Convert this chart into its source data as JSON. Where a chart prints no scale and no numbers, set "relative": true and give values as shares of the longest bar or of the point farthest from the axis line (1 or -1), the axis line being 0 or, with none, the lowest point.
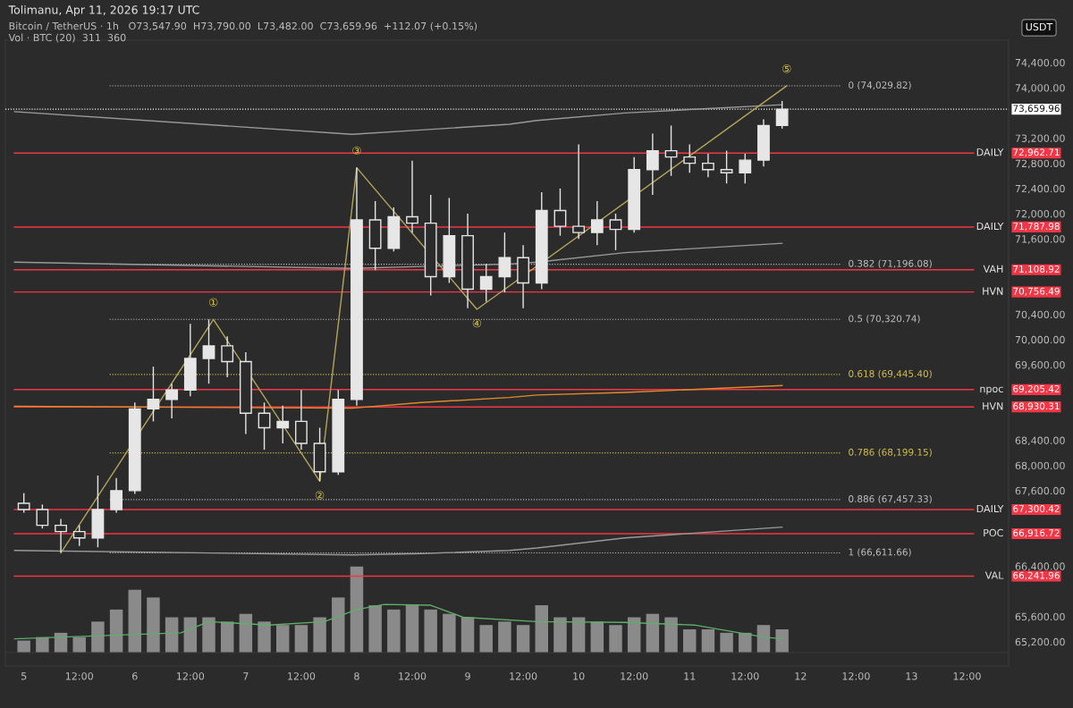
{
  "chart_data": [
    {
      "type": "candlestick",
      "title": "Tolimanu, Apr 11, 2026 19:17 UTC",
      "color": "#e6e6e6",
      "x": [
        "2026-04-05T00:00",
        "2026-04-05T04:00",
        "2026-04-05T08:00",
        "2026-04-05T12:00",
        "2026-04-05T16:00",
        "2026-04-05T20:00",
        "2026-04-06T00:00",
        "2026-04-06T04:00",
        "2026-04-06T08:00",
        "2026-04-06T12:00",
        "2026-04-06T16:00",
        "2026-04-06T20:00",
        "2026-04-07T00:00",
        "2026-04-07T04:00",
        "2026-04-07T08:00",
        "2026-04-07T12:00",
        "2026-04-07T16:00",
        "2026-04-07T20:00",
        "2026-04-08T00:00",
        "2026-04-08T04:00",
        "2026-04-08T08:00",
        "2026-04-08T12:00",
        "2026-04-08T16:00",
        "2026-04-08T20:00",
        "2026-04-09T00:00",
        "2026-04-09T04:00",
        "2026-04-09T08:00",
        "2026-04-09T12:00",
        "2026-04-09T16:00",
        "2026-04-09T20:00",
        "2026-04-10T00:00",
        "2026-04-10T04:00",
        "2026-04-10T08:00",
        "2026-04-10T12:00",
        "2026-04-10T16:00",
        "2026-04-10T20:00",
        "2026-04-11T00:00",
        "2026-04-11T04:00",
        "2026-04-11T08:00",
        "2026-04-11T12:00",
        "2026-04-11T16:00",
        "2026-04-11T20:00"
      ],
      "ohlc": [
        [
          67400,
          67560,
          67250,
          67300
        ],
        [
          67300,
          67380,
          67000,
          67050
        ],
        [
          67050,
          67150,
          66620,
          66950
        ],
        [
          66950,
          67050,
          66720,
          66850
        ],
        [
          66850,
          67840,
          66700,
          67300
        ],
        [
          67300,
          67800,
          67250,
          67600
        ],
        [
          67600,
          69000,
          67550,
          68900
        ],
        [
          68900,
          69570,
          68700,
          69050
        ],
        [
          69050,
          69300,
          68750,
          69200
        ],
        [
          69200,
          70250,
          69100,
          69700
        ],
        [
          69700,
          70320,
          69300,
          69900
        ],
        [
          69900,
          70050,
          69400,
          69650
        ],
        [
          69650,
          69800,
          68500,
          68830
        ],
        [
          68830,
          69000,
          68250,
          68600
        ],
        [
          68600,
          68950,
          68350,
          68700
        ],
        [
          68700,
          69200,
          68250,
          68350
        ],
        [
          68350,
          68600,
          67750,
          67900
        ],
        [
          67900,
          69200,
          67850,
          69050
        ],
        [
          69050,
          72730,
          68950,
          71900
        ],
        [
          71900,
          72200,
          71100,
          71450
        ],
        [
          71450,
          72100,
          71400,
          71950
        ],
        [
          71950,
          72840,
          71700,
          71850
        ],
        [
          71850,
          72300,
          70700,
          71000
        ],
        [
          71000,
          72250,
          70900,
          71650
        ],
        [
          71650,
          72000,
          70500,
          70800
        ],
        [
          70800,
          71200,
          70600,
          71000
        ],
        [
          71000,
          71700,
          70750,
          71300
        ],
        [
          71300,
          71500,
          70500,
          70900
        ],
        [
          70900,
          72340,
          70800,
          72050
        ],
        [
          72050,
          72400,
          71650,
          71800
        ],
        [
          71800,
          73100,
          71600,
          71700
        ],
        [
          71700,
          72200,
          71500,
          71900
        ],
        [
          71900,
          72000,
          71420,
          71750
        ],
        [
          71750,
          72900,
          71700,
          72700
        ],
        [
          72700,
          73270,
          72300,
          73000
        ],
        [
          73000,
          73400,
          72600,
          72900
        ],
        [
          72900,
          73100,
          72650,
          72800
        ],
        [
          72800,
          72950,
          72580,
          72700
        ],
        [
          72700,
          73000,
          72480,
          72650
        ],
        [
          72650,
          72950,
          72480,
          72850
        ],
        [
          72850,
          73500,
          72750,
          73400
        ],
        [
          73400,
          73790,
          73350,
          73659.96
        ]
      ],
      "series": [
        {
          "type": "line",
          "color": "#e08a2c",
          "x": [
            "2026-04-04T22:00",
            "2026-04-07T23:00",
            "2026-04-08T14:00",
            "2026-04-09T09:00",
            "2026-04-09T15:00",
            "2026-04-10T10:00",
            "2026-04-11T20:00"
          ],
          "values": [
            68940,
            68910,
            69000,
            69080,
            69120,
            69160,
            69270
          ]
        },
        {
          "type": "line",
          "color": "#9a9a9a",
          "x": [
            "2026-04-04T22:00",
            "2026-04-07T23:00",
            "2026-04-08T14:00",
            "2026-04-09T09:00",
            "2026-04-09T15:00",
            "2026-04-10T10:00",
            "2026-04-11T20:00"
          ],
          "values": [
            73620,
            73260,
            73330,
            73420,
            73480,
            73600,
            73730
          ]
        },
        {
          "type": "line",
          "color": "#9a9a9a",
          "x": [
            "2026-04-04T22:00",
            "2026-04-07T23:00",
            "2026-04-08T14:00",
            "2026-04-09T09:00",
            "2026-04-09T15:00",
            "2026-04-10T10:00",
            "2026-04-11T20:00"
          ],
          "values": [
            71230,
            71130,
            71160,
            71200,
            71230,
            71380,
            71530
          ]
        },
        {
          "type": "line",
          "color": "#9a9a9a",
          "x": [
            "2026-04-04T22:00",
            "2026-04-07T23:00",
            "2026-04-08T14:00",
            "2026-04-09T09:00",
            "2026-04-09T15:00",
            "2026-04-10T10:00",
            "2026-04-11T20:00"
          ],
          "values": [
            66650,
            66580,
            66600,
            66650,
            66690,
            66850,
            67020
          ]
        },
        {
          "type": "line",
          "color": "#b5a55a",
          "x": [
            "2026-04-05T08:00",
            "2026-04-06T17:00",
            "2026-04-07T16:00",
            "2026-04-08T00:00",
            "2026-04-09T02:00",
            "2026-04-11T21:00"
          ],
          "values": [
            66610,
            70320,
            67750,
            72730,
            70480,
            74030
          ]
        }
      ],
      "ref_lines": [
        {
          "axis": "y",
          "value": 74029.82,
          "label": "0 (74,029.82)",
          "color": "#bfbfbf",
          "line_style": "dotted"
        },
        {
          "axis": "y",
          "value": 73659.96,
          "label": null,
          "color": "#ffffff",
          "line_style": "dotted"
        },
        {
          "axis": "y",
          "value": 72962.71,
          "label": "DAILY",
          "color": "#f23645",
          "line_style": "solid"
        },
        {
          "axis": "y",
          "value": 71787.98,
          "label": "DAILY",
          "color": "#f23645",
          "line_style": "solid"
        },
        {
          "axis": "y",
          "value": 71196.08,
          "label": "0.382 (71,196.08)",
          "color": "#bfbfbf",
          "line_style": "dotted"
        },
        {
          "axis": "y",
          "value": 71108.92,
          "label": "VAH",
          "color": "#f23645",
          "line_style": "solid"
        },
        {
          "axis": "y",
          "value": 70756.49,
          "label": "HVN",
          "color": "#f23645",
          "line_style": "solid"
        },
        {
          "axis": "y",
          "value": 70320.74,
          "label": "0.5 (70,320.74)",
          "color": "#bfbfbf",
          "line_style": "dotted"
        },
        {
          "axis": "y",
          "value": 69445.4,
          "label": "0.618 (69,445.40)",
          "color": "#d4bf4a",
          "line_style": "dotted"
        },
        {
          "axis": "y",
          "value": 69205.42,
          "label": "npoc",
          "color": "#f23645",
          "line_style": "solid"
        },
        {
          "axis": "y",
          "value": 68930.31,
          "label": "HVN",
          "color": "#f23645",
          "line_style": "solid"
        },
        {
          "axis": "y",
          "value": 68199.15,
          "label": "0.786 (68,199.15)",
          "color": "#d4bf4a",
          "line_style": "dotted"
        },
        {
          "axis": "y",
          "value": 67457.33,
          "label": "0.886 (67,457.33)",
          "color": "#bfbfbf",
          "line_style": "dotted"
        },
        {
          "axis": "y",
          "value": 67300.42,
          "label": "DAILY",
          "color": "#f23645",
          "line_style": "solid"
        },
        {
          "axis": "y",
          "value": 66916.72,
          "label": "POC",
          "color": "#f23645",
          "line_style": "solid"
        },
        {
          "axis": "y",
          "value": 66611.66,
          "label": "1 (66,611.66)",
          "color": "#bfbfbf",
          "line_style": "dotted"
        },
        {
          "axis": "y",
          "value": 66241.96,
          "label": "VAL",
          "color": "#f23645",
          "line_style": "solid"
        }
      ],
      "annotations": [
        "Bitcoin / TetherUS · 1h   O73,547.90  H73,790.00  L73,482.00  C73,659.96  +112.07 (+0.15%)",
        "Vol · BTC (20)  311  360",
        "USDT",
        {
          "text": "①",
          "x": "2026-04-06T17:00",
          "y": 70320
        },
        {
          "text": "②",
          "x": "2026-04-07T16:00",
          "y": 67750
        },
        {
          "text": "③",
          "x": "2026-04-08T00:00",
          "y": 72730
        },
        {
          "text": "④",
          "x": "2026-04-09T02:00",
          "y": 70480
        },
        {
          "text": "⑤",
          "x": "2026-04-11T21:00",
          "y": 74030
        },
        "73,659.96",
        "72,962.71",
        "71,787.98",
        "71,108.92",
        "70,756.49",
        "69,205.42",
        "68,930.31",
        "67,300.42",
        "66,916.72",
        "66,241.96"
      ],
      "xlim": [
        "2026-04-04T20:00",
        "2026-04-13T21:00"
      ],
      "xticks": [
        {
          "value": "2026-04-05T00:00",
          "label": "5"
        },
        {
          "value": "2026-04-05T12:00",
          "label": "12:00"
        },
        {
          "value": "2026-04-06T00:00",
          "label": "6"
        },
        {
          "value": "2026-04-06T12:00",
          "label": "12:00"
        },
        {
          "value": "2026-04-07T00:00",
          "label": "7"
        },
        {
          "value": "2026-04-07T12:00",
          "label": "12:00"
        },
        {
          "value": "2026-04-08T00:00",
          "label": "8"
        },
        {
          "value": "2026-04-08T12:00",
          "label": "12:00"
        },
        {
          "value": "2026-04-09T00:00",
          "label": "9"
        },
        {
          "value": "2026-04-09T12:00",
          "label": "12:00"
        },
        {
          "value": "2026-04-10T00:00",
          "label": "10"
        },
        {
          "value": "2026-04-10T12:00",
          "label": "12:00"
        },
        {
          "value": "2026-04-11T00:00",
          "label": "11"
        },
        {
          "value": "2026-04-11T12:00",
          "label": "12:00"
        },
        {
          "value": "2026-04-12T00:00",
          "label": "12"
        },
        {
          "value": "2026-04-12T12:00",
          "label": "12:00"
        },
        {
          "value": "2026-04-13T00:00",
          "label": "13"
        },
        {
          "value": "2026-04-13T12:00",
          "label": "12:00"
        }
      ],
      "ylim": [
        64815,
        74755
      ],
      "yticks": [
        {
          "value": 74400,
          "label": "74,400.00"
        },
        {
          "value": 74000,
          "label": "74,000.00"
        },
        {
          "value": 73200,
          "label": "73,200.00"
        },
        {
          "value": 72800,
          "label": "72,800.00"
        },
        {
          "value": 72400,
          "label": "72,400.00"
        },
        {
          "value": 72000,
          "label": "72,000.00"
        },
        {
          "value": 71600,
          "label": "71,600.00"
        },
        {
          "value": 70400,
          "label": "70,400.00"
        },
        {
          "value": 70000,
          "label": "70,000.00"
        },
        {
          "value": 69600,
          "label": "69,600.00"
        },
        {
          "value": 68400,
          "label": "68,400.00"
        },
        {
          "value": 68000,
          "label": "68,000.00"
        },
        {
          "value": 67600,
          "label": "67,600.00"
        },
        {
          "value": 66400,
          "label": "66,400.00"
        },
        {
          "value": 65600,
          "label": "65,600.00"
        },
        {
          "value": 65200,
          "label": "65,200.00"
        }
      ]
    },
    {
      "type": "bar",
      "relative": true,
      "tick_labels": false,
      "color": "#8a8a8a",
      "xlim": [
        "2026-04-04T20:00",
        "2026-04-13T21:00"
      ],
      "x": [
        "2026-04-05T00:00",
        "2026-04-05T04:00",
        "2026-04-05T08:00",
        "2026-04-05T12:00",
        "2026-04-05T16:00",
        "2026-04-05T20:00",
        "2026-04-06T00:00",
        "2026-04-06T04:00",
        "2026-04-06T08:00",
        "2026-04-06T12:00",
        "2026-04-06T16:00",
        "2026-04-06T20:00",
        "2026-04-07T00:00",
        "2026-04-07T04:00",
        "2026-04-07T08:00",
        "2026-04-07T12:00",
        "2026-04-07T16:00",
        "2026-04-07T20:00",
        "2026-04-08T00:00",
        "2026-04-08T04:00",
        "2026-04-08T08:00",
        "2026-04-08T12:00",
        "2026-04-08T16:00",
        "2026-04-08T20:00",
        "2026-04-09T00:00",
        "2026-04-09T04:00",
        "2026-04-09T08:00",
        "2026-04-09T12:00",
        "2026-04-09T16:00",
        "2026-04-09T20:00",
        "2026-04-10T00:00",
        "2026-04-10T04:00",
        "2026-04-10T08:00",
        "2026-04-10T12:00",
        "2026-04-10T16:00",
        "2026-04-10T20:00",
        "2026-04-11T00:00",
        "2026-04-11T04:00",
        "2026-04-11T08:00",
        "2026-04-11T12:00",
        "2026-04-11T16:00",
        "2026-04-11T20:00"
      ],
      "values": [
        0.14,
        0.18,
        0.23,
        0.18,
        0.36,
        0.5,
        0.73,
        0.64,
        0.41,
        0.41,
        0.41,
        0.36,
        0.45,
        0.36,
        0.32,
        0.32,
        0.41,
        0.64,
        1,
        0.55,
        0.5,
        0.55,
        0.5,
        0.45,
        0.41,
        0.32,
        0.36,
        0.32,
        0.55,
        0.41,
        0.41,
        0.36,
        0.32,
        0.41,
        0.45,
        0.41,
        0.27,
        0.27,
        0.23,
        0.23,
        0.32,
        0.27
      ],
      "series": [
        {
          "type": "line",
          "color": "#5fae6a",
          "x": [
            "2026-04-04T22:00",
            "2026-04-06T10:00",
            "2026-04-06T16:00",
            "2026-04-07T05:00",
            "2026-04-07T17:00",
            "2026-04-08T00:00",
            "2026-04-08T06:00",
            "2026-04-08T16:00",
            "2026-04-08T23:00",
            "2026-04-09T15:00",
            "2026-04-10T10:00",
            "2026-04-11T01:00",
            "2026-04-11T16:00",
            "2026-04-11T20:00"
          ],
          "values": [
            0.16,
            0.23,
            0.36,
            0.32,
            0.36,
            0.5,
            0.56,
            0.55,
            0.41,
            0.36,
            0.35,
            0.32,
            0.18,
            0.16
          ]
        }
      ]
    }
  ]
}
